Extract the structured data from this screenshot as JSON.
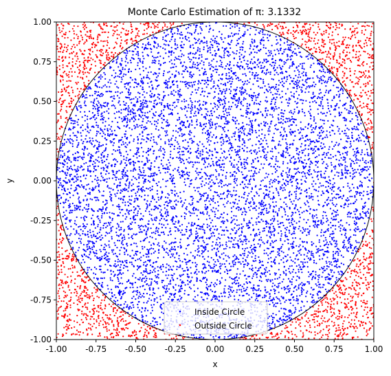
{
  "chart_data": {
    "type": "scatter",
    "title": "Monte Carlo Estimation of π: 3.1332",
    "xlabel": "x",
    "ylabel": "y",
    "xlim": [
      -1.0,
      1.0
    ],
    "ylim": [
      -1.0,
      1.0
    ],
    "grid": false,
    "legend_position": "lower center",
    "x_ticks": [
      "-1.00",
      "-0.75",
      "-0.50",
      "-0.25",
      "0.00",
      "0.25",
      "0.50",
      "0.75",
      "1.00"
    ],
    "y_ticks": [
      "1.00",
      "0.75",
      "0.50",
      "0.25",
      "0.00",
      "-0.25",
      "-0.50",
      "-0.75",
      "-1.00"
    ],
    "x_tick_values": [
      -1.0,
      -0.75,
      -0.5,
      -0.25,
      0.0,
      0.25,
      0.5,
      0.75,
      1.0
    ],
    "y_tick_values": [
      1.0,
      0.75,
      0.5,
      0.25,
      0.0,
      -0.25,
      -0.5,
      -0.75,
      -1.0
    ],
    "circle": {
      "center": [
        0,
        0
      ],
      "radius": 1.0,
      "color": "#000000"
    },
    "series": [
      {
        "name": "Inside Circle",
        "color": "#0000ff",
        "estimated_points": 7833
      },
      {
        "name": "Outside Circle",
        "color": "#ff0000",
        "estimated_points": 2167
      }
    ]
  }
}
